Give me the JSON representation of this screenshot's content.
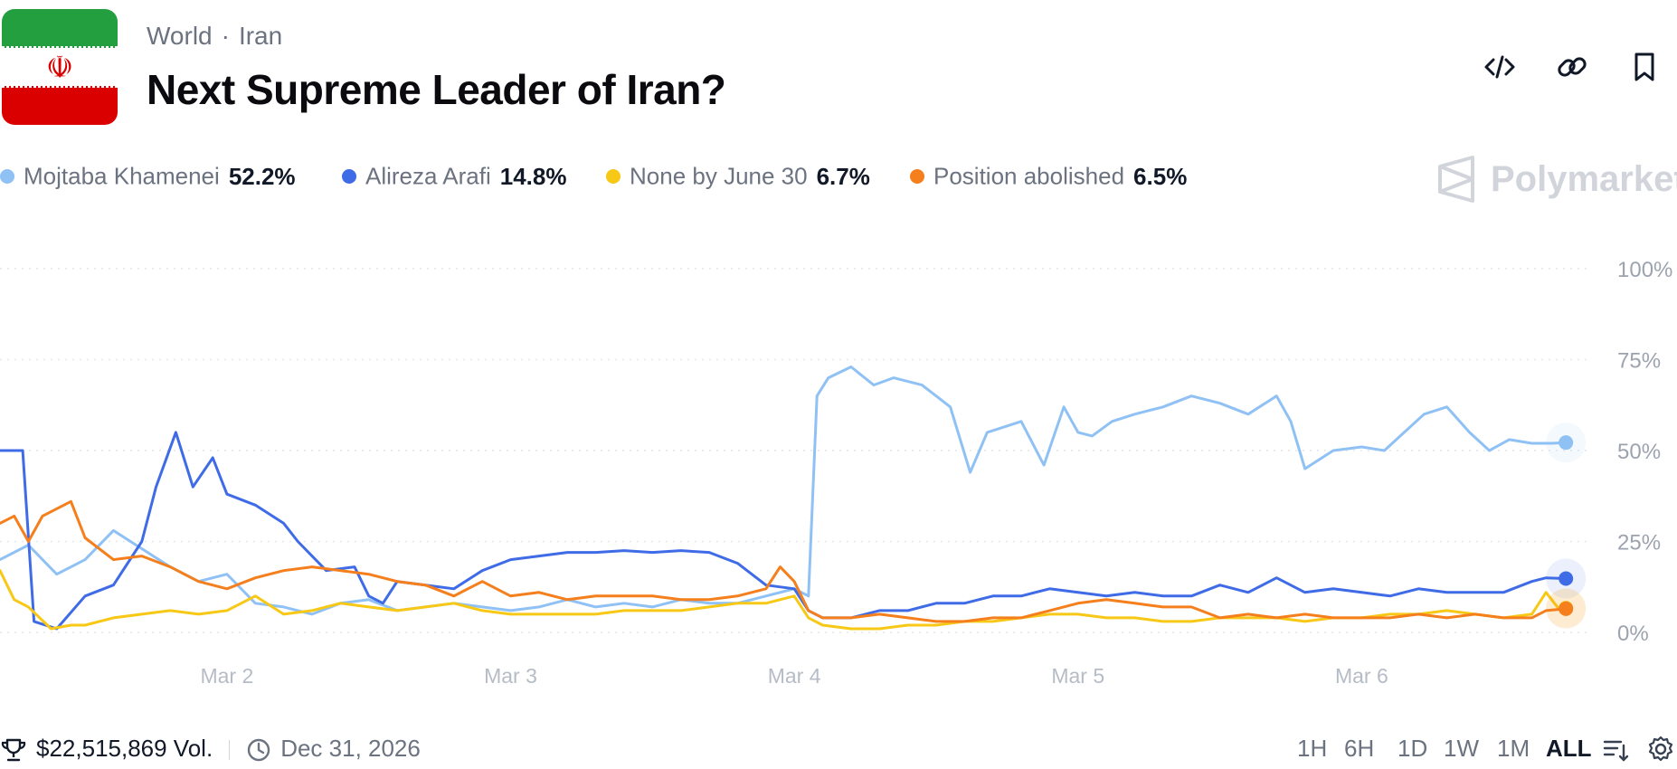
{
  "header": {
    "breadcrumb": [
      "World",
      "Iran"
    ],
    "title": "Next Supreme Leader of Iran?",
    "flag_emblem": "☫"
  },
  "legend": [
    {
      "name": "Mojtaba Khamenei",
      "value": "52.2%",
      "color": "#8fc1f5"
    },
    {
      "name": "Alireza Arafi",
      "value": "14.8%",
      "color": "#3f6ce6"
    },
    {
      "name": "None by June 30",
      "value": "6.7%",
      "color": "#f7c815"
    },
    {
      "name": "Position abolished",
      "value": "6.5%",
      "color": "#f47f1c"
    }
  ],
  "brand": {
    "name": "Polymarket"
  },
  "footer": {
    "volume": "$22,515,869 Vol.",
    "end_date": "Dec 31, 2026",
    "ranges": [
      "1H",
      "6H",
      "1D",
      "1W",
      "1M",
      "ALL"
    ],
    "active_range": "ALL"
  },
  "icons": {
    "embed": "embed-code-icon",
    "link": "link-icon",
    "bookmark": "bookmark-icon",
    "trophy": "trophy-icon",
    "clock": "clock-icon",
    "sort": "sort-icon",
    "settings": "gear-icon"
  },
  "chart_data": {
    "type": "line",
    "title": "Next Supreme Leader of Iran?",
    "xlabel": "",
    "ylabel": "",
    "x_tick_labels": [
      "Mar 2",
      "Mar 3",
      "Mar 4",
      "Mar 5",
      "Mar 6"
    ],
    "x_tick_positions": [
      2,
      3,
      4,
      5,
      6
    ],
    "xlim": [
      1.2,
      6.78
    ],
    "ylim": [
      0,
      100
    ],
    "y_ticks": [
      0,
      25,
      50,
      75,
      100
    ],
    "y_tick_labels": [
      "0%",
      "25%",
      "50%",
      "75%",
      "100%"
    ],
    "grid": true,
    "series": [
      {
        "name": "Mojtaba Khamenei",
        "color": "#8fc1f5",
        "x": [
          1.2,
          1.3,
          1.4,
          1.5,
          1.6,
          1.7,
          1.8,
          1.9,
          2.0,
          2.1,
          2.2,
          2.3,
          2.4,
          2.5,
          2.6,
          2.7,
          2.8,
          2.9,
          3.0,
          3.1,
          3.2,
          3.3,
          3.4,
          3.5,
          3.6,
          3.7,
          3.8,
          3.9,
          4.0,
          4.05,
          4.08,
          4.12,
          4.2,
          4.28,
          4.35,
          4.45,
          4.55,
          4.62,
          4.68,
          4.72,
          4.8,
          4.88,
          4.95,
          5.0,
          5.05,
          5.12,
          5.2,
          5.3,
          5.4,
          5.5,
          5.6,
          5.7,
          5.75,
          5.8,
          5.9,
          6.0,
          6.08,
          6.15,
          6.22,
          6.3,
          6.38,
          6.45,
          6.52,
          6.6,
          6.67,
          6.72
        ],
        "values": [
          20,
          24,
          16,
          20,
          28,
          23,
          18,
          14,
          16,
          8,
          7,
          5,
          8,
          9,
          6,
          7,
          8,
          7,
          6,
          7,
          9,
          7,
          8,
          7,
          9,
          8,
          8,
          10,
          12,
          10,
          65,
          70,
          73,
          68,
          70,
          68,
          62,
          44,
          55,
          56,
          58,
          46,
          62,
          55,
          54,
          58,
          60,
          62,
          65,
          63,
          60,
          65,
          58,
          45,
          50,
          51,
          50,
          55,
          60,
          62,
          55,
          50,
          53,
          52,
          52,
          52.2
        ]
      },
      {
        "name": "Alireza Arafi",
        "color": "#3f6ce6",
        "x": [
          1.2,
          1.28,
          1.32,
          1.4,
          1.5,
          1.6,
          1.7,
          1.75,
          1.82,
          1.88,
          1.95,
          2.0,
          2.1,
          2.2,
          2.25,
          2.35,
          2.45,
          2.5,
          2.55,
          2.6,
          2.7,
          2.8,
          2.9,
          3.0,
          3.1,
          3.2,
          3.3,
          3.4,
          3.5,
          3.6,
          3.7,
          3.8,
          3.9,
          4.0,
          4.05,
          4.1,
          4.2,
          4.3,
          4.4,
          4.5,
          4.6,
          4.7,
          4.8,
          4.9,
          5.0,
          5.1,
          5.2,
          5.3,
          5.4,
          5.5,
          5.6,
          5.7,
          5.8,
          5.9,
          6.0,
          6.1,
          6.2,
          6.3,
          6.4,
          6.5,
          6.6,
          6.65,
          6.72
        ],
        "values": [
          50,
          50,
          3,
          1,
          10,
          13,
          25,
          40,
          55,
          40,
          48,
          38,
          35,
          30,
          25,
          17,
          18,
          10,
          8,
          14,
          13,
          12,
          17,
          20,
          21,
          22,
          22,
          22.5,
          22,
          22.5,
          22,
          19,
          13,
          12,
          6,
          4,
          4,
          6,
          6,
          8,
          8,
          10,
          10,
          12,
          11,
          10,
          11,
          10,
          10,
          13,
          11,
          15,
          11,
          12,
          11,
          10,
          12,
          11,
          11,
          11,
          14,
          15,
          14.8
        ]
      },
      {
        "name": "None by June 30",
        "color": "#f7c815",
        "x": [
          1.2,
          1.25,
          1.3,
          1.38,
          1.45,
          1.5,
          1.6,
          1.7,
          1.8,
          1.9,
          2.0,
          2.1,
          2.2,
          2.3,
          2.4,
          2.5,
          2.6,
          2.7,
          2.8,
          2.9,
          3.0,
          3.1,
          3.2,
          3.3,
          3.4,
          3.5,
          3.6,
          3.7,
          3.8,
          3.9,
          4.0,
          4.05,
          4.1,
          4.2,
          4.3,
          4.4,
          4.5,
          4.6,
          4.7,
          4.8,
          4.9,
          5.0,
          5.1,
          5.2,
          5.3,
          5.4,
          5.5,
          5.6,
          5.7,
          5.8,
          5.9,
          6.0,
          6.1,
          6.2,
          6.3,
          6.4,
          6.5,
          6.6,
          6.65,
          6.7,
          6.72
        ],
        "values": [
          17,
          9,
          7,
          1,
          2,
          2,
          4,
          5,
          6,
          5,
          6,
          10,
          5,
          6,
          8,
          7,
          6,
          7,
          8,
          6,
          5,
          5,
          5,
          5,
          6,
          6,
          6,
          7,
          8,
          8,
          10,
          4,
          2,
          1,
          1,
          2,
          2,
          3,
          3,
          4,
          5,
          5,
          4,
          4,
          3,
          3,
          4,
          4,
          4,
          3,
          4,
          4,
          5,
          5,
          6,
          5,
          4,
          5,
          11,
          6,
          6.7
        ]
      },
      {
        "name": "Position abolished",
        "color": "#f47f1c",
        "x": [
          1.2,
          1.25,
          1.3,
          1.35,
          1.45,
          1.5,
          1.6,
          1.7,
          1.8,
          1.9,
          2.0,
          2.1,
          2.2,
          2.3,
          2.4,
          2.5,
          2.6,
          2.7,
          2.8,
          2.9,
          3.0,
          3.1,
          3.2,
          3.3,
          3.4,
          3.5,
          3.6,
          3.7,
          3.8,
          3.9,
          3.95,
          4.0,
          4.05,
          4.1,
          4.2,
          4.3,
          4.4,
          4.5,
          4.6,
          4.7,
          4.8,
          4.9,
          5.0,
          5.1,
          5.2,
          5.3,
          5.4,
          5.5,
          5.6,
          5.7,
          5.8,
          5.9,
          6.0,
          6.1,
          6.2,
          6.3,
          6.4,
          6.5,
          6.6,
          6.65,
          6.72
        ],
        "values": [
          30,
          32,
          25,
          32,
          36,
          26,
          20,
          21,
          18,
          14,
          12,
          15,
          17,
          18,
          17,
          16,
          14,
          13,
          10,
          14,
          10,
          11,
          9,
          10,
          10,
          10,
          9,
          9,
          10,
          12,
          18,
          14,
          6,
          4,
          4,
          5,
          4,
          3,
          3,
          4,
          4,
          6,
          8,
          9,
          8,
          7,
          7,
          4,
          5,
          4,
          5,
          4,
          4,
          4,
          5,
          4,
          5,
          4,
          4,
          6,
          6.5
        ]
      }
    ]
  }
}
